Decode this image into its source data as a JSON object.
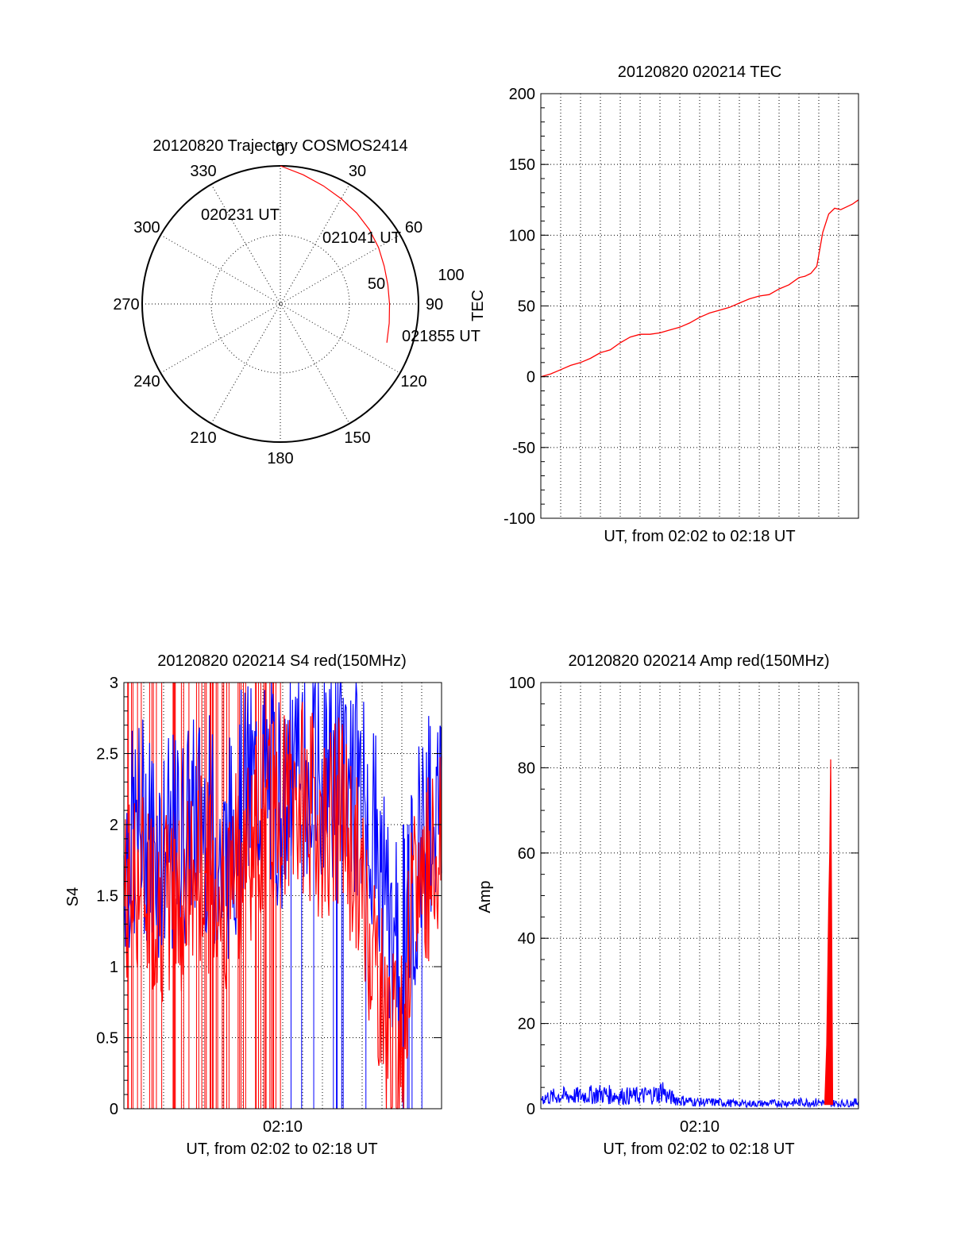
{
  "colors": {
    "red": "#ff0000",
    "blue": "#0000ff",
    "axis": "#000000"
  },
  "chart_data": [
    {
      "type": "polar",
      "title": "20120820 Trajectory COSMOS2414",
      "angle_labels": [
        "0",
        "30",
        "60",
        "90",
        "120",
        "150",
        "180",
        "210",
        "240",
        "270",
        "300",
        "330"
      ],
      "ring_labels": [
        "50",
        "100"
      ],
      "rlim": [
        0,
        100
      ],
      "grid": true,
      "annotations": [
        "020231 UT",
        "021041 UT",
        "021855 UT"
      ],
      "trajectory": {
        "name": "COSMOS2414",
        "color": "#ff0000",
        "azimuth_deg": [
          0,
          10,
          20,
          30,
          40,
          50,
          60,
          70,
          80,
          90,
          100,
          110
        ],
        "radius": [
          100,
          95,
          91,
          88,
          86,
          84,
          82,
          80,
          79,
          79,
          80,
          82
        ]
      }
    },
    {
      "type": "line",
      "title": "20120820 020214 TEC",
      "xlabel": "UT, from 02:02 to 02:18 UT",
      "ylabel": "TEC",
      "xlim": [
        0,
        16
      ],
      "ylim": [
        -100,
        200
      ],
      "y_ticks": [
        "200",
        "150",
        "100",
        "50",
        "0",
        "-50",
        "-100"
      ],
      "grid": true,
      "series": [
        {
          "color": "#ff0000",
          "x": [
            0,
            0.5,
            1,
            1.5,
            2,
            2.5,
            3,
            3.5,
            4,
            4.5,
            5,
            5.5,
            6,
            6.5,
            7,
            7.5,
            8,
            8.5,
            9,
            9.5,
            10,
            10.5,
            11,
            11.5,
            12,
            12.5,
            13,
            13.3,
            13.6,
            13.9,
            14.2,
            14.5,
            14.8,
            15.1,
            15.4,
            15.7,
            16
          ],
          "y": [
            0,
            2,
            5,
            8,
            10,
            13,
            17,
            19,
            24,
            28,
            30,
            30,
            31,
            33,
            35,
            38,
            42,
            45,
            47,
            49,
            52,
            55,
            57,
            58,
            62,
            65,
            70,
            71,
            73,
            78,
            102,
            115,
            119,
            118,
            120,
            122,
            125
          ]
        }
      ]
    },
    {
      "type": "line",
      "title": "20120820 020214 S4 red(150MHz)",
      "xlabel": "UT, from 02:02 to 02:18 UT",
      "ylabel": "S4",
      "xlim": [
        0,
        16
      ],
      "ylim": [
        0,
        3
      ],
      "x_ticks": [
        "02:10"
      ],
      "y_ticks": [
        "3",
        "2.5",
        "2",
        "1.5",
        "1",
        "0.5",
        "0"
      ],
      "grid": true,
      "series": [
        {
          "color": "#0000ff",
          "x": [
            0,
            1,
            2,
            3,
            4,
            5,
            6,
            7,
            8,
            9,
            10,
            11,
            12,
            12.5,
            13,
            13.5,
            14,
            14.5,
            15,
            16
          ],
          "y": [
            1.8,
            2.0,
            1.8,
            1.9,
            2.1,
            1.7,
            2.2,
            2.3,
            2.2,
            2.4,
            2.3,
            2.5,
            2.2,
            2.0,
            1.6,
            1.2,
            1.0,
            1.5,
            2.0,
            2.2
          ]
        },
        {
          "color": "#ff0000",
          "x": [
            0,
            1,
            2,
            3,
            4,
            5,
            6,
            7,
            8,
            9,
            10,
            11,
            12,
            12.5,
            13,
            13.5,
            14,
            14.5,
            15,
            16
          ],
          "y": [
            1.5,
            1.6,
            1.4,
            1.5,
            1.7,
            1.5,
            1.8,
            2.0,
            2.1,
            2.2,
            2.0,
            2.1,
            1.5,
            1.2,
            0.8,
            0.4,
            0.5,
            1.3,
            1.7,
            1.8
          ]
        }
      ]
    },
    {
      "type": "line",
      "title": "20120820 020214 Amp red(150MHz)",
      "xlabel": "UT, from 02:02 to 02:18 UT",
      "ylabel": "Amp",
      "xlim": [
        0,
        16
      ],
      "ylim": [
        0,
        100
      ],
      "x_ticks": [
        "02:10"
      ],
      "y_ticks": [
        "100",
        "80",
        "60",
        "40",
        "20",
        "0"
      ],
      "grid": true,
      "series": [
        {
          "color": "#0000ff",
          "x": [
            0,
            1,
            2,
            3,
            4,
            5,
            6,
            6.1,
            6.3,
            7,
            8,
            9,
            10,
            11,
            12,
            13,
            14,
            15,
            16
          ],
          "y": [
            2.5,
            3,
            3,
            3.5,
            3,
            3,
            3.5,
            5,
            3,
            2,
            1.5,
            1.5,
            1.2,
            1.2,
            1.3,
            1.5,
            1.5,
            1.2,
            1.5
          ]
        },
        {
          "color": "#ff0000",
          "x": [
            14.3,
            14.4,
            14.5,
            14.55,
            14.6,
            14.65,
            14.7
          ],
          "y": [
            1,
            15,
            48,
            60,
            82,
            40,
            1
          ]
        }
      ]
    }
  ]
}
